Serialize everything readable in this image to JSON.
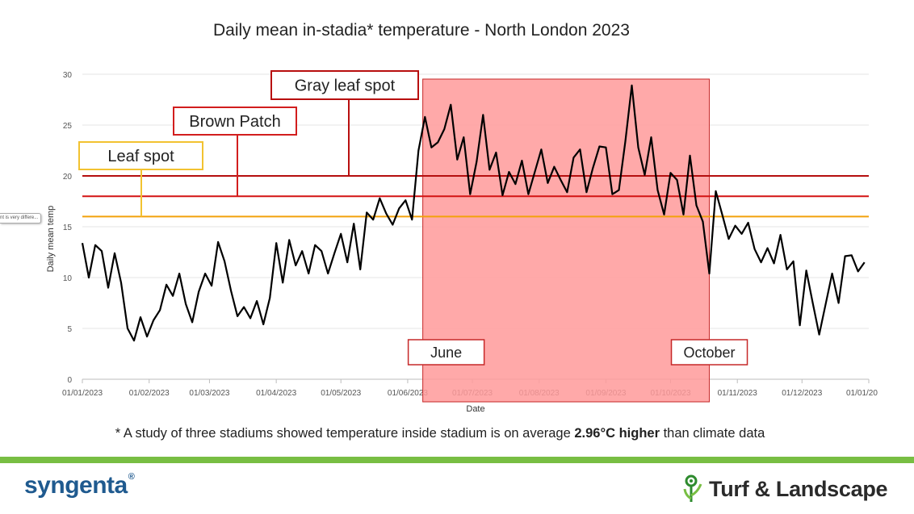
{
  "chart_data": {
    "type": "line",
    "title": "Daily mean in-stadia* temperature - North London 2023",
    "xlabel": "Date",
    "ylabel": "Daily mean temp",
    "ylim": [
      0,
      30
    ],
    "yticks": [
      0,
      5,
      10,
      15,
      20,
      25,
      30
    ],
    "xlim": [
      "2023-01-01",
      "2024-01-01"
    ],
    "xticks": [
      "2023-01-01",
      "2023-02-01",
      "2023-03-01",
      "2023-04-01",
      "2023-05-01",
      "2023-06-01",
      "2023-07-01",
      "2023-08-01",
      "2023-09-01",
      "2023-10-01",
      "2023-11-01",
      "2023-12-01",
      "2024-01-01"
    ],
    "xtick_labels": [
      "01/01/2023",
      "01/02/2023",
      "01/03/2023",
      "01/04/2023",
      "01/05/2023",
      "01/06/2023",
      "01/07/2023",
      "01/08/2023",
      "01/09/2023",
      "01/10/2023",
      "01/11/2023",
      "01/12/2023",
      "01/01/20"
    ],
    "grid": true,
    "series": [
      {
        "name": "",
        "color": "#000000",
        "x": [
          "2023-01-01",
          "2023-01-04",
          "2023-01-07",
          "2023-01-10",
          "2023-01-13",
          "2023-01-16",
          "2023-01-19",
          "2023-01-22",
          "2023-01-25",
          "2023-01-28",
          "2023-01-31",
          "2023-02-03",
          "2023-02-06",
          "2023-02-09",
          "2023-02-12",
          "2023-02-15",
          "2023-02-18",
          "2023-02-21",
          "2023-02-24",
          "2023-02-27",
          "2023-03-02",
          "2023-03-05",
          "2023-03-08",
          "2023-03-11",
          "2023-03-14",
          "2023-03-17",
          "2023-03-20",
          "2023-03-23",
          "2023-03-26",
          "2023-03-29",
          "2023-04-01",
          "2023-04-04",
          "2023-04-07",
          "2023-04-10",
          "2023-04-13",
          "2023-04-16",
          "2023-04-19",
          "2023-04-22",
          "2023-04-25",
          "2023-04-28",
          "2023-05-01",
          "2023-05-04",
          "2023-05-07",
          "2023-05-10",
          "2023-05-13",
          "2023-05-16",
          "2023-05-19",
          "2023-05-22",
          "2023-05-25",
          "2023-05-28",
          "2023-05-31",
          "2023-06-03",
          "2023-06-06",
          "2023-06-09",
          "2023-06-12",
          "2023-06-15",
          "2023-06-18",
          "2023-06-21",
          "2023-06-24",
          "2023-06-27",
          "2023-06-30",
          "2023-07-03",
          "2023-07-06",
          "2023-07-09",
          "2023-07-12",
          "2023-07-15",
          "2023-07-18",
          "2023-07-21",
          "2023-07-24",
          "2023-07-27",
          "2023-07-30",
          "2023-08-02",
          "2023-08-05",
          "2023-08-08",
          "2023-08-11",
          "2023-08-14",
          "2023-08-17",
          "2023-08-20",
          "2023-08-23",
          "2023-08-26",
          "2023-08-29",
          "2023-09-01",
          "2023-09-04",
          "2023-09-07",
          "2023-09-10",
          "2023-09-13",
          "2023-09-16",
          "2023-09-19",
          "2023-09-22",
          "2023-09-25",
          "2023-09-28",
          "2023-10-01",
          "2023-10-04",
          "2023-10-07",
          "2023-10-10",
          "2023-10-13",
          "2023-10-16",
          "2023-10-19",
          "2023-10-22",
          "2023-10-25",
          "2023-10-28",
          "2023-10-31",
          "2023-11-03",
          "2023-11-06",
          "2023-11-09",
          "2023-11-12",
          "2023-11-15",
          "2023-11-18",
          "2023-11-21",
          "2023-11-24",
          "2023-11-27",
          "2023-11-30",
          "2023-12-03",
          "2023-12-06",
          "2023-12-09",
          "2023-12-12",
          "2023-12-15",
          "2023-12-18",
          "2023-12-21",
          "2023-12-24",
          "2023-12-27",
          "2023-12-30"
        ],
        "y": [
          13.4,
          10,
          13.2,
          12.6,
          9,
          12.4,
          9.5,
          5,
          3.8,
          6.1,
          4.2,
          5.8,
          6.8,
          9.3,
          8.2,
          10.4,
          7.4,
          5.6,
          8.6,
          10.4,
          9.2,
          13.5,
          11.6,
          8.7,
          6.2,
          7.1,
          6,
          7.7,
          5.4,
          8,
          13.4,
          9.5,
          13.7,
          11.2,
          12.6,
          10.4,
          13.2,
          12.6,
          10.4,
          12.4,
          14.3,
          11.5,
          15.3,
          10.8,
          16.4,
          15.7,
          17.8,
          16.3,
          15.2,
          16.8,
          17.6,
          15.7,
          22.5,
          25.8,
          22.8,
          23.3,
          24.6,
          27,
          21.6,
          23.8,
          18.2,
          21.4,
          26,
          20.6,
          22.3,
          18.1,
          20.4,
          19.2,
          21.5,
          18.2,
          20.4,
          22.6,
          19.3,
          20.9,
          19.6,
          18.4,
          21.8,
          22.6,
          18.4,
          20.8,
          22.9,
          22.8,
          18.2,
          18.6,
          23.4,
          28.9,
          22.8,
          20.1,
          23.8,
          18.6,
          16.2,
          20.3,
          19.6,
          16.2,
          22,
          17.1,
          15.5,
          10.4,
          18.5,
          16.2,
          13.8,
          15.1,
          14.3,
          15.4,
          12.8,
          11.5,
          12.9,
          11.4,
          14.2,
          10.8,
          11.6,
          5.3,
          10.7,
          7.5,
          4.4,
          7.4,
          10.4,
          7.5,
          12.1,
          12.2,
          10.6,
          11.5
        ]
      }
    ],
    "thresholds": [
      {
        "label": "Leaf spot",
        "value": 16,
        "color": "#f2a20c",
        "box_color": "#f2c230"
      },
      {
        "label": "Brown Patch",
        "value": 18,
        "color": "#d31313",
        "box_color": "#d21e1e"
      },
      {
        "label": "Gray leaf spot",
        "value": 20,
        "color": "#b50e0e",
        "box_color": "#b80f0f"
      }
    ],
    "highlight_period": {
      "start": "2023-06-08",
      "end": "2023-10-19",
      "color": "#ff9a9a",
      "start_label": "June",
      "end_label": "October"
    }
  },
  "footnote": {
    "prefix": "* A study of three stadiums showed temperature inside stadium is on average ",
    "bold": "2.96°C higher",
    "suffix": " than climate data"
  },
  "logos": {
    "left": "syngenta",
    "right": "Turf & Landscape"
  },
  "side_tooltip": "nt is very differe..."
}
